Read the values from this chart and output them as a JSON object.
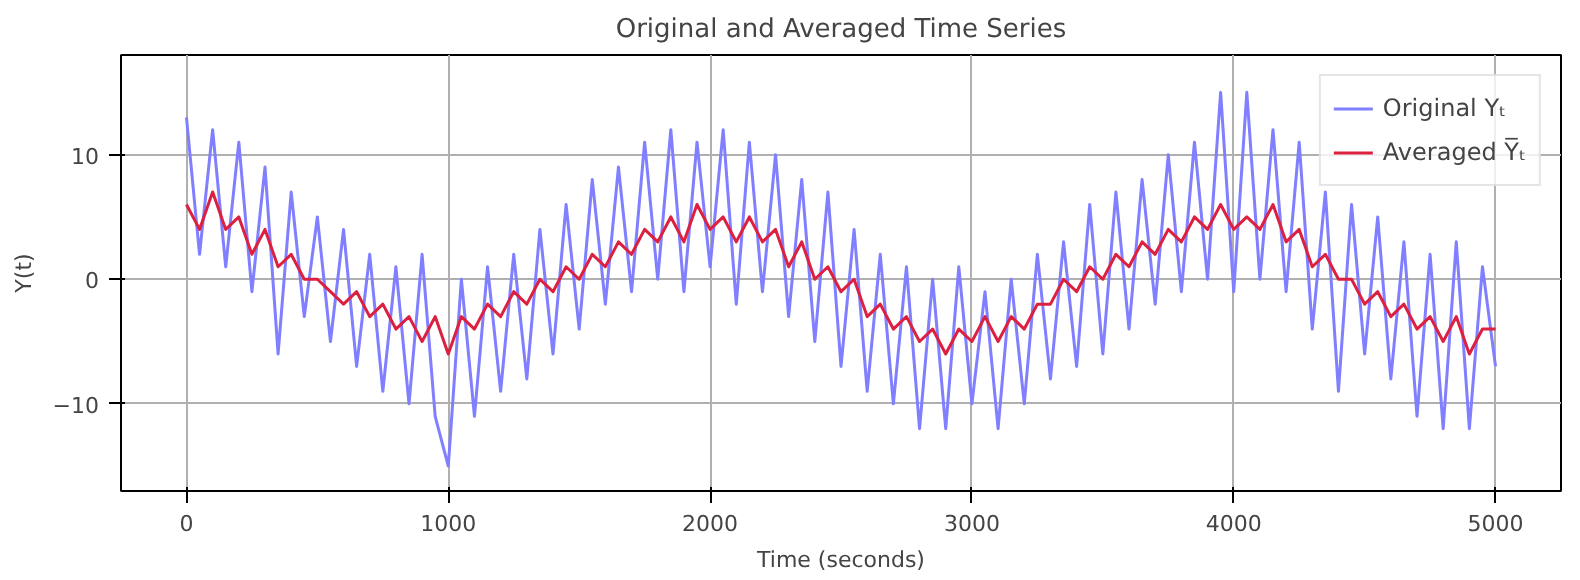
{
  "chart_data": {
    "type": "line",
    "title": "Original and Averaged Time Series",
    "xlabel": "Time (seconds)",
    "ylabel": "Y(t)",
    "x": [
      0,
      50,
      100,
      150,
      200,
      250,
      300,
      350,
      400,
      450,
      500,
      550,
      600,
      650,
      700,
      750,
      800,
      850,
      900,
      950,
      1000,
      1050,
      1100,
      1150,
      1200,
      1250,
      1300,
      1350,
      1400,
      1450,
      1500,
      1550,
      1600,
      1650,
      1700,
      1750,
      1800,
      1850,
      1900,
      1950,
      2000,
      2050,
      2100,
      2150,
      2200,
      2250,
      2300,
      2350,
      2400,
      2450,
      2500,
      2550,
      2600,
      2650,
      2700,
      2750,
      2800,
      2850,
      2900,
      2950,
      3000,
      3050,
      3100,
      3150,
      3200,
      3250,
      3300,
      3350,
      3400,
      3450,
      3500,
      3550,
      3600,
      3650,
      3700,
      3750,
      3800,
      3850,
      3900,
      3950,
      4000,
      4050,
      4100,
      4150,
      4200,
      4250,
      4300,
      4350,
      4400,
      4450,
      4500,
      4550,
      4600,
      4650,
      4700,
      4750,
      4800,
      4850,
      4900,
      4950,
      5000
    ],
    "series": [
      {
        "name": "Original Yₜ",
        "color": "#7f7fff",
        "values": [
          13,
          2,
          12,
          1,
          11,
          -1,
          9,
          -6,
          7,
          -3,
          5,
          -5,
          4,
          -7,
          2,
          -9,
          1,
          -10,
          2,
          -11,
          -15,
          0,
          -11,
          1,
          -9,
          2,
          -8,
          4,
          -6,
          6,
          -4,
          8,
          -2,
          9,
          -1,
          11,
          0,
          12,
          -1,
          11,
          1,
          12,
          -2,
          11,
          -1,
          10,
          -3,
          8,
          -5,
          7,
          -7,
          4,
          -9,
          2,
          -10,
          1,
          -12,
          0,
          -12,
          1,
          -10,
          -1,
          -12,
          0,
          -10,
          2,
          -8,
          3,
          -7,
          6,
          -6,
          7,
          -4,
          8,
          -2,
          10,
          -1,
          11,
          0,
          15,
          -1,
          15,
          0,
          12,
          -1,
          11,
          -4,
          7,
          -9,
          6,
          -6,
          5,
          -8,
          3,
          -11,
          2,
          -12,
          3,
          -12,
          1,
          -7
        ]
      },
      {
        "name": "Averaged Y̅ₜ",
        "color": "#dc2040",
        "values": [
          6,
          4,
          7,
          4,
          5,
          2,
          4,
          1,
          2,
          0,
          0,
          -1,
          -2,
          -1,
          -3,
          -2,
          -4,
          -3,
          -5,
          -3,
          -6,
          -3,
          -4,
          -2,
          -3,
          -1,
          -2,
          0,
          -1,
          1,
          0,
          2,
          1,
          3,
          2,
          4,
          3,
          5,
          3,
          6,
          4,
          5,
          3,
          5,
          3,
          4,
          1,
          3,
          0,
          1,
          -1,
          0,
          -3,
          -2,
          -4,
          -3,
          -5,
          -4,
          -6,
          -4,
          -5,
          -3,
          -5,
          -3,
          -4,
          -2,
          -2,
          0,
          -1,
          1,
          0,
          2,
          1,
          3,
          2,
          4,
          3,
          5,
          4,
          6,
          4,
          5,
          4,
          6,
          3,
          4,
          1,
          2,
          0,
          0,
          -2,
          -1,
          -3,
          -2,
          -4,
          -3,
          -5,
          -3,
          -6,
          -4,
          -4
        ]
      }
    ],
    "xlim": [
      -250,
      5250
    ],
    "ylim": [
      -17,
      18
    ],
    "xticks": [
      0,
      1000,
      2000,
      3000,
      4000,
      5000
    ],
    "yticks": [
      {
        "value": -10,
        "label": "−10"
      },
      0,
      10
    ],
    "grid": true,
    "legend": "top right",
    "line_style": "solid",
    "marker": "none"
  }
}
